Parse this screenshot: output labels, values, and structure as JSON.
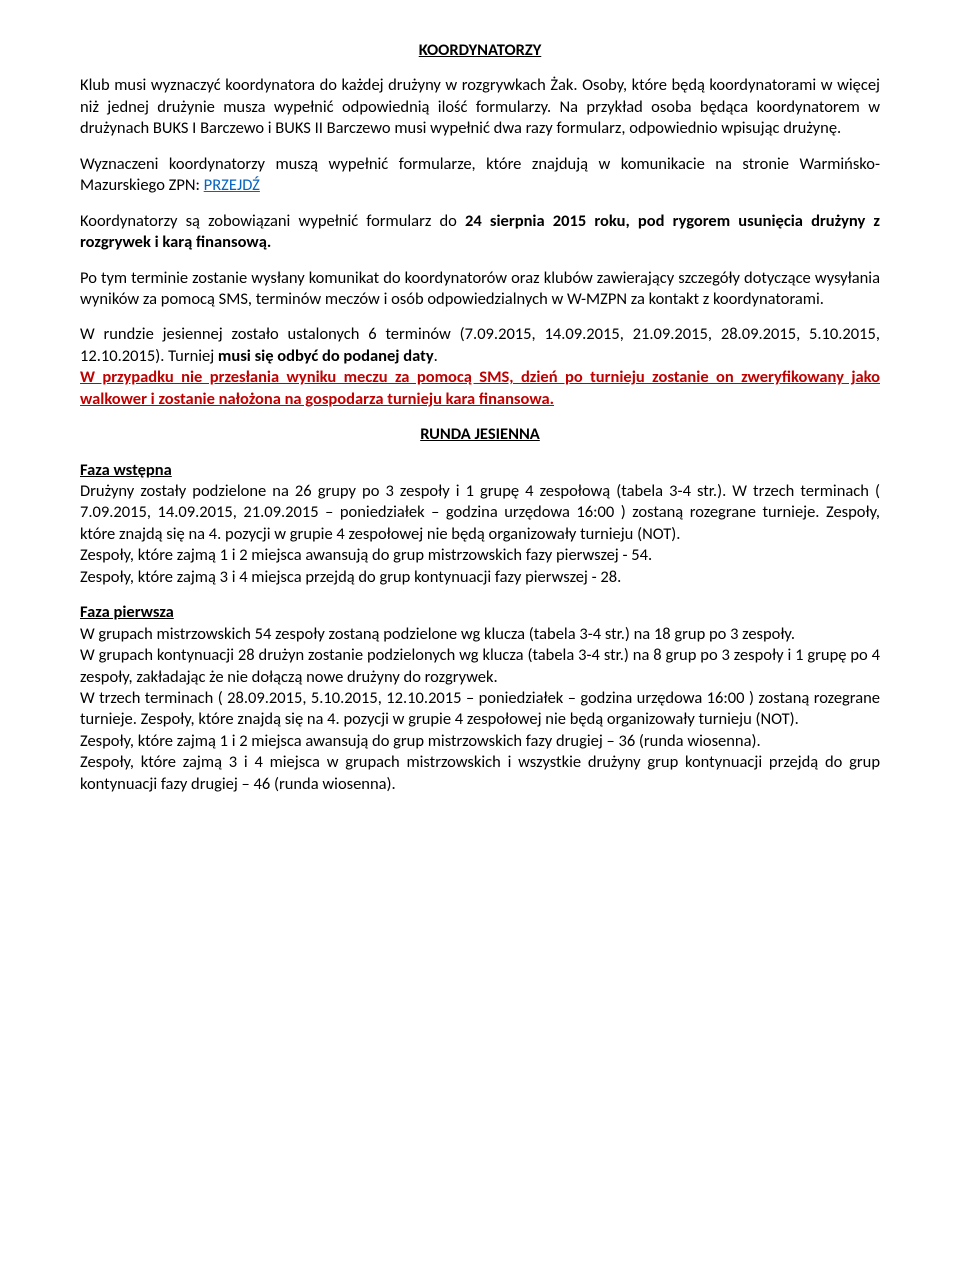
{
  "title": "KOORDYNATORZY",
  "p1a": "Klub musi wyznaczyć koordynatora do każdej drużyny w rozgrywkach Żak. Osoby, które będą koordynatorami w więcej niż jednej drużynie musza wypełnić odpowiednią ilość formularzy. Na przykład osoba będąca koordynatorem w drużynach BUKS I Barczewo i BUKS II Barczewo musi wypełnić dwa razy formularz, odpowiednio wpisując drużynę.",
  "p2a": "Wyznaczeni koordynatorzy muszą wypełnić formularze, które znajdują w komunikacie na stronie Warmińsko-Mazurskiego ZPN: ",
  "p2link": "PRZEJDŹ",
  "p3a": "Koordynatorzy są zobowiązani wypełnić formularz do ",
  "p3b": "24 sierpnia 2015 roku, pod rygorem usunięcia drużyny z rozgrywek i karą finansową.",
  "p4": "Po tym terminie zostanie wysłany komunikat do koordynatorów oraz klubów zawierający szczegóły dotyczące wysyłania wyników za pomocą SMS, terminów meczów i osób odpowiedzialnych w W-MZPN za kontakt z koordynatorami.",
  "p5a": "W rundzie jesiennej zostało ustalonych 6 terminów (7.09.2015, 14.09.2015, 21.09.2015, 28.09.2015, 5.10.2015, 12.10.2015). Turniej ",
  "p5b": "musi się odbyć do podanej daty",
  "p5c": ".",
  "p5red": "W przypadku nie przesłania wyniku meczu za pomocą SMS, dzień po turnieju zostanie on zweryfikowany jako walkower i zostanie nałożona na gospodarza turnieju kara finansowa.",
  "rundaHeading": "RUNDA JESIENNA",
  "fazaWstepnaHeading": "Faza wstępna",
  "fw1": "Drużyny zostały podzielone na 26 grupy po 3 zespoły i 1 grupę 4 zespołową (tabela 3-4 str.). W trzech terminach ( 7.09.2015, 14.09.2015, 21.09.2015 – poniedziałek – godzina urzędowa 16:00 ) zostaną rozegrane turnieje. Zespoły, które znajdą się na 4. pozycji w grupie 4 zespołowej nie będą organizowały turnieju (NOT).",
  "fw2": "Zespoły, które zajmą 1 i 2 miejsca awansują do grup mistrzowskich fazy pierwszej - 54.",
  "fw3": "Zespoły, które zajmą 3 i 4 miejsca przejdą do grup kontynuacji fazy pierwszej - 28.",
  "fazaPierwszaHeading": "Faza pierwsza",
  "fp1": "W grupach mistrzowskich 54 zespoły zostaną podzielone wg klucza (tabela 3-4 str.) na 18 grup po 3 zespoły.",
  "fp2": "W grupach kontynuacji 28 drużyn zostanie podzielonych wg klucza (tabela 3-4 str.) na 8 grup po 3 zespoły i 1 grupę po 4 zespoły, zakładając że nie dołączą nowe drużyny do rozgrywek.",
  "fp3": "W trzech terminach ( 28.09.2015, 5.10.2015, 12.10.2015 – poniedziałek – godzina urzędowa 16:00 ) zostaną rozegrane turnieje. Zespoły, które znajdą się na 4. pozycji w grupie 4 zespołowej nie będą organizowały turnieju (NOT).",
  "fp4": "Zespoły, które zajmą 1 i 2 miejsca awansują do grup mistrzowskich fazy drugiej – 36 (runda wiosenna).",
  "fp5": "Zespoły, które zajmą 3 i 4 miejsca w grupach mistrzowskich i wszystkie drużyny grup kontynuacji przejdą do grup kontynuacji fazy drugiej – 46 (runda wiosenna)."
}
